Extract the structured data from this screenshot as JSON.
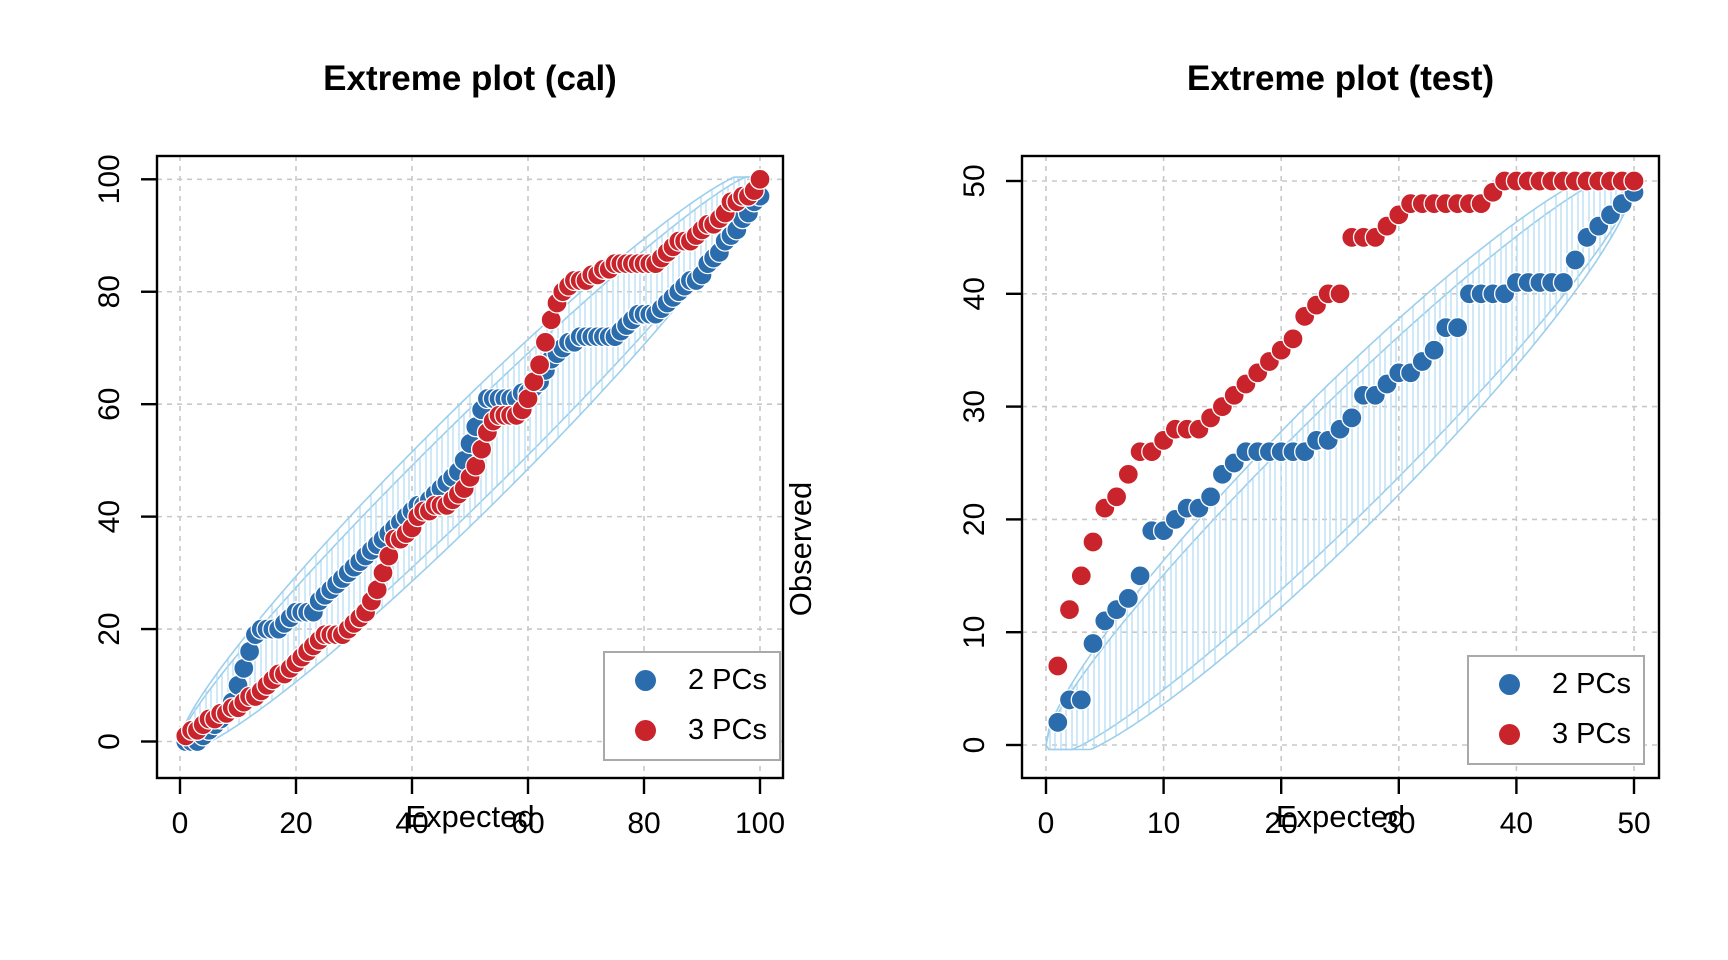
{
  "page": {
    "background": "#ffffff"
  },
  "colors": {
    "series_blue": "#2b6cad",
    "series_red": "#c9232b",
    "grid": "#c8c8c8",
    "axis": "#000000",
    "envelope_line": "#9ccfec",
    "envelope_hatch": "#b5ddf3",
    "legend_border": "#a9a9a9"
  },
  "chart_data": [
    {
      "type": "scatter",
      "title": "Extreme plot (cal)",
      "xlabel": "Expected",
      "ylabel": "Observed",
      "xlim": [
        0,
        100
      ],
      "ylim": [
        0,
        100
      ],
      "xticks": [
        0,
        20,
        40,
        60,
        80,
        100
      ],
      "yticks": [
        0,
        20,
        40,
        60,
        80,
        100
      ],
      "grid": true,
      "legend": {
        "position": "bottom-right",
        "entries": [
          {
            "label": "2 PCs",
            "color": "#2b6cad"
          },
          {
            "label": "3 PCs",
            "color": "#c9232b"
          }
        ]
      },
      "x_start": 1,
      "x_step": 1,
      "series": [
        {
          "name": "2 PCs",
          "color": "#2b6cad",
          "values": [
            0,
            0,
            0,
            1,
            2,
            3,
            4,
            5,
            7,
            10,
            13,
            16,
            19,
            20,
            20,
            20,
            20,
            21,
            22,
            23,
            23,
            23,
            23,
            25,
            26,
            27,
            28,
            29,
            30,
            31,
            32,
            33,
            34,
            35,
            36,
            37,
            38,
            39,
            40,
            41,
            42,
            42,
            43,
            44,
            45,
            46,
            47,
            48,
            50,
            53,
            56,
            59,
            61,
            61,
            61,
            61,
            61,
            61,
            62,
            62,
            63,
            64,
            66,
            68,
            69,
            70,
            71,
            71,
            72,
            72,
            72,
            72,
            72,
            72,
            72,
            73,
            74,
            75,
            76,
            76,
            76,
            76,
            77,
            78,
            79,
            80,
            81,
            82,
            82,
            83,
            85,
            86,
            87,
            89,
            90,
            91,
            93,
            94,
            96,
            97
          ]
        },
        {
          "name": "3 PCs",
          "color": "#c9232b",
          "values": [
            1,
            2,
            2,
            3,
            4,
            4,
            5,
            5,
            6,
            6,
            7,
            8,
            8,
            9,
            10,
            11,
            12,
            12,
            13,
            14,
            15,
            16,
            17,
            18,
            19,
            19,
            19,
            19,
            20,
            21,
            22,
            23,
            25,
            27,
            30,
            33,
            36,
            36,
            37,
            38,
            40,
            41,
            41,
            42,
            42,
            42,
            43,
            44,
            45,
            47,
            49,
            52,
            55,
            57,
            58,
            58,
            58,
            58,
            59,
            61,
            64,
            67,
            71,
            75,
            78,
            80,
            81,
            82,
            82,
            82,
            83,
            83,
            84,
            84,
            85,
            85,
            85,
            85,
            85,
            85,
            85,
            85,
            86,
            87,
            88,
            89,
            89,
            89,
            90,
            91,
            92,
            92,
            93,
            94,
            96,
            96,
            97,
            97,
            98,
            100
          ]
        }
      ],
      "envelope": {
        "n": 100,
        "z_outer": 2.35,
        "z_inner": 1.85
      }
    },
    {
      "type": "scatter",
      "title": "Extreme plot (test)",
      "xlabel": "Expected",
      "ylabel": "Observed",
      "xlim": [
        0,
        50
      ],
      "ylim": [
        0,
        50
      ],
      "xticks": [
        0,
        10,
        20,
        30,
        40,
        50
      ],
      "yticks": [
        0,
        10,
        20,
        30,
        40,
        50
      ],
      "grid": true,
      "legend": {
        "position": "bottom-right",
        "entries": [
          {
            "label": "2 PCs",
            "color": "#2b6cad"
          },
          {
            "label": "3 PCs",
            "color": "#c9232b"
          }
        ]
      },
      "x_start": 1,
      "x_step": 1,
      "series": [
        {
          "name": "2 PCs",
          "color": "#2b6cad",
          "values": [
            2,
            4,
            4,
            9,
            11,
            12,
            13,
            15,
            19,
            19,
            20,
            21,
            21,
            22,
            24,
            25,
            26,
            26,
            26,
            26,
            26,
            26,
            27,
            27,
            28,
            29,
            31,
            31,
            32,
            33,
            33,
            34,
            35,
            37,
            37,
            40,
            40,
            40,
            40,
            41,
            41,
            41,
            41,
            41,
            43,
            45,
            46,
            47,
            48,
            49
          ]
        },
        {
          "name": "3 PCs",
          "color": "#c9232b",
          "values": [
            7,
            12,
            15,
            18,
            21,
            22,
            24,
            26,
            26,
            27,
            28,
            28,
            28,
            29,
            30,
            31,
            32,
            33,
            34,
            35,
            36,
            38,
            39,
            40,
            40,
            45,
            45,
            45,
            46,
            47,
            48,
            48,
            48,
            48,
            48,
            48,
            48,
            49,
            50,
            50,
            50,
            50,
            50,
            50,
            50,
            50,
            50,
            50,
            50,
            50
          ]
        }
      ],
      "envelope": {
        "n": 50,
        "z_outer": 2.25,
        "z_inner": 1.8
      }
    }
  ]
}
